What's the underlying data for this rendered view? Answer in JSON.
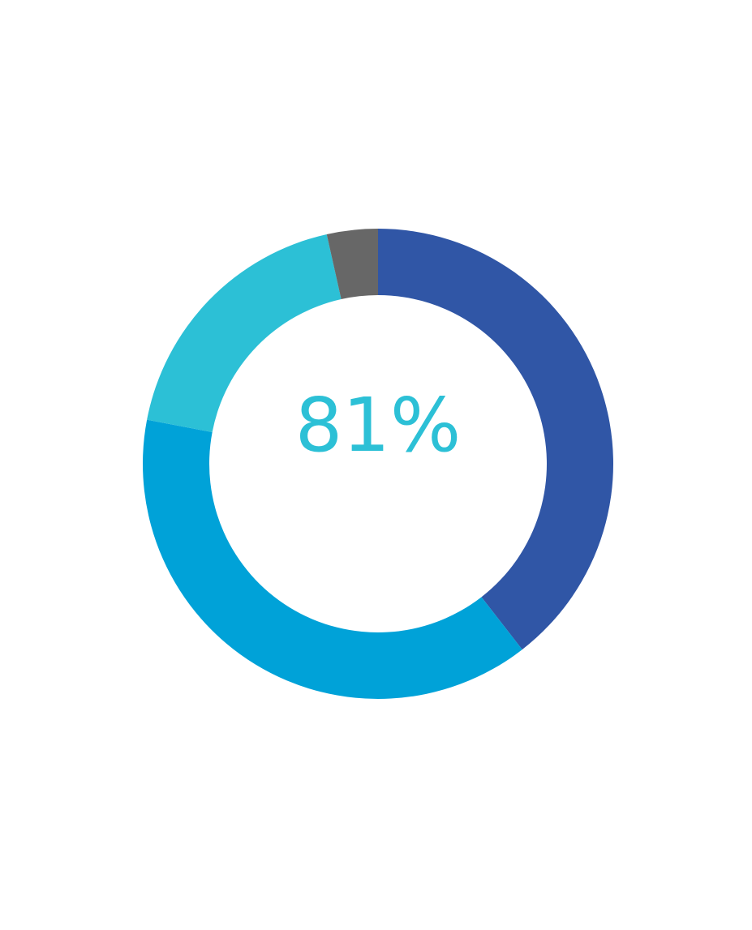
{
  "chart_data": {
    "type": "pie",
    "variant": "donut",
    "center_text": "81%",
    "slices": [
      {
        "value": 39.5,
        "color": "#3056a6"
      },
      {
        "value": 38.5,
        "color": "#00a2d8"
      },
      {
        "value": 18.5,
        "color": "#2cc0d6"
      },
      {
        "value": 3.5,
        "color": "#676767"
      }
    ],
    "start": "top",
    "direction": "clockwise",
    "center_text_color": "#2cc0d6",
    "legend": "none"
  }
}
